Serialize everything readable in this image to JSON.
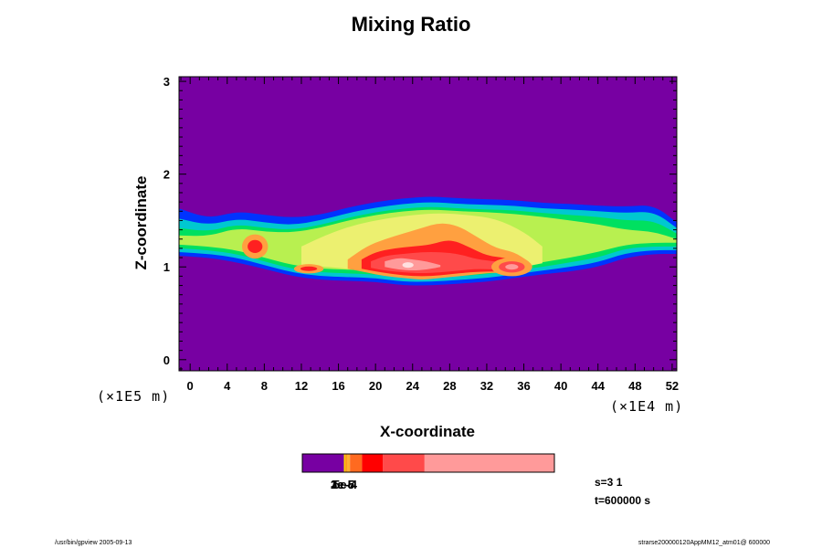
{
  "title": "Mixing Ratio",
  "chart_data": {
    "type": "heatmap",
    "title": "Mixing Ratio",
    "xlabel": "X-coordinate",
    "ylabel": "Z-coordinate",
    "x_scale_label": "(×1E4 m)",
    "y_scale_label": "(×1E5 m)",
    "xlim": [
      -1.2,
      52.5
    ],
    "ylim": [
      -0.12,
      3.05
    ],
    "x_ticks": [
      0,
      4,
      8,
      12,
      16,
      20,
      24,
      28,
      32,
      36,
      40,
      44,
      48,
      52
    ],
    "y_ticks": [
      0,
      1,
      2,
      3
    ],
    "background_color": "#7700a2",
    "cloud_layers": [
      {
        "color": "#0033ff",
        "x": [
          -1.2,
          2,
          5,
          8,
          11,
          14,
          17,
          20,
          23,
          26,
          29,
          32,
          35,
          38,
          41,
          44,
          47,
          50,
          52.5
        ],
        "z_top": [
          1.63,
          1.52,
          1.6,
          1.56,
          1.53,
          1.56,
          1.64,
          1.7,
          1.74,
          1.76,
          1.74,
          1.73,
          1.72,
          1.69,
          1.68,
          1.66,
          1.65,
          1.67,
          1.48
        ],
        "z_bot": [
          1.12,
          1.1,
          1.05,
          0.98,
          0.9,
          0.86,
          0.85,
          0.84,
          0.8,
          0.8,
          0.82,
          0.84,
          0.88,
          0.92,
          0.95,
          1.0,
          1.1,
          1.14,
          1.14
        ]
      },
      {
        "color": "#00c8d0",
        "x": [
          -1.2,
          2,
          5,
          8,
          11,
          14,
          17,
          20,
          23,
          26,
          29,
          32,
          35,
          38,
          41,
          44,
          47,
          50,
          52.5
        ],
        "z_top": [
          1.52,
          1.45,
          1.52,
          1.48,
          1.45,
          1.5,
          1.58,
          1.64,
          1.68,
          1.7,
          1.68,
          1.67,
          1.66,
          1.63,
          1.62,
          1.6,
          1.58,
          1.6,
          1.42
        ],
        "z_bot": [
          1.16,
          1.14,
          1.1,
          1.02,
          0.94,
          0.9,
          0.89,
          0.88,
          0.84,
          0.84,
          0.86,
          0.88,
          0.92,
          0.96,
          1.0,
          1.05,
          1.15,
          1.18,
          1.18
        ]
      },
      {
        "color": "#00e060",
        "x": [
          -1.2,
          2,
          5,
          8,
          11,
          14,
          17,
          20,
          23,
          26,
          29,
          32,
          35,
          38,
          41,
          44,
          47,
          50,
          52.5
        ],
        "z_top": [
          1.42,
          1.38,
          1.46,
          1.42,
          1.4,
          1.45,
          1.53,
          1.59,
          1.63,
          1.65,
          1.63,
          1.62,
          1.61,
          1.58,
          1.56,
          1.54,
          1.5,
          1.5,
          1.36
        ],
        "z_bot": [
          1.2,
          1.18,
          1.14,
          1.06,
          0.98,
          0.94,
          0.93,
          0.92,
          0.88,
          0.88,
          0.9,
          0.92,
          0.96,
          1.0,
          1.05,
          1.1,
          1.2,
          1.22,
          1.22
        ]
      },
      {
        "color": "#b8f050",
        "x": [
          -1.2,
          2,
          5,
          8,
          11,
          14,
          17,
          20,
          23,
          26,
          29,
          32,
          35,
          38,
          41,
          44,
          47,
          50,
          52.5
        ],
        "z_top": [
          1.34,
          1.33,
          1.42,
          1.38,
          1.37,
          1.42,
          1.5,
          1.56,
          1.6,
          1.62,
          1.6,
          1.59,
          1.57,
          1.54,
          1.5,
          1.46,
          1.4,
          1.38,
          1.3
        ],
        "z_bot": [
          1.24,
          1.22,
          1.18,
          1.1,
          1.02,
          0.98,
          0.97,
          0.96,
          0.92,
          0.92,
          0.94,
          0.96,
          1.0,
          1.05,
          1.1,
          1.16,
          1.24,
          1.26,
          1.26
        ]
      },
      {
        "color": "#ecf070",
        "x": [
          12,
          15,
          18,
          21,
          24,
          27,
          30,
          33,
          36,
          38
        ],
        "z_top": [
          1.22,
          1.36,
          1.46,
          1.52,
          1.56,
          1.58,
          1.56,
          1.52,
          1.38,
          1.22
        ],
        "z_bot": [
          1.02,
          1.0,
          0.97,
          0.94,
          0.92,
          0.92,
          0.94,
          0.96,
          1.0,
          1.04
        ]
      },
      {
        "color": "#ffa040",
        "x": [
          17,
          19,
          21,
          23,
          25,
          27,
          29,
          31,
          33,
          35,
          36.5
        ],
        "z_top": [
          1.08,
          1.22,
          1.3,
          1.36,
          1.42,
          1.48,
          1.44,
          1.32,
          1.2,
          1.16,
          1.06
        ],
        "z_bot": [
          0.98,
          0.94,
          0.9,
          0.88,
          0.86,
          0.88,
          0.9,
          0.92,
          0.94,
          0.92,
          0.98
        ]
      },
      {
        "color": "#ff2020",
        "x": [
          18.5,
          20,
          22,
          24,
          26,
          28,
          30,
          32,
          34,
          35.5
        ],
        "z_top": [
          1.08,
          1.16,
          1.2,
          1.22,
          1.24,
          1.3,
          1.22,
          1.12,
          1.1,
          1.04
        ],
        "z_bot": [
          0.98,
          0.95,
          0.92,
          0.9,
          0.9,
          0.92,
          0.94,
          0.95,
          0.95,
          0.98
        ]
      },
      {
        "color": "#ff4a4a",
        "x": [
          19.5,
          21,
          23,
          25,
          27,
          29,
          31,
          33,
          35
        ],
        "z_top": [
          1.06,
          1.12,
          1.14,
          1.16,
          1.16,
          1.14,
          1.08,
          1.06,
          1.02
        ],
        "z_bot": [
          0.99,
          0.96,
          0.94,
          0.93,
          0.94,
          0.96,
          0.98,
          0.97,
          0.99
        ]
      },
      {
        "color": "#ff9a9a",
        "x": [
          21,
          22.5,
          24,
          25.5,
          27
        ],
        "z_top": [
          1.06,
          1.1,
          1.08,
          1.06,
          1.02
        ],
        "z_bot": [
          1.0,
          0.97,
          0.96,
          0.97,
          1.0
        ]
      }
    ],
    "cloud_blobs": [
      {
        "color": "#ffa040",
        "x": 7.0,
        "z": 1.22,
        "rx": 1.4,
        "rz": 0.13
      },
      {
        "color": "#ff2020",
        "x": 7.0,
        "z": 1.22,
        "rx": 0.8,
        "rz": 0.07
      },
      {
        "color": "#ffa040",
        "x": 12.8,
        "z": 0.98,
        "rx": 1.6,
        "rz": 0.05
      },
      {
        "color": "#ff2020",
        "x": 12.8,
        "z": 0.98,
        "rx": 0.9,
        "rz": 0.025
      },
      {
        "color": "#ffa040",
        "x": 34.7,
        "z": 1.0,
        "rx": 2.2,
        "rz": 0.1
      },
      {
        "color": "#ff4a4a",
        "x": 34.7,
        "z": 1.0,
        "rx": 1.4,
        "rz": 0.06
      },
      {
        "color": "#ff9a9a",
        "x": 34.7,
        "z": 1.0,
        "rx": 0.7,
        "rz": 0.03
      },
      {
        "color": "#ffe0e0",
        "x": 23.5,
        "z": 1.02,
        "rx": 0.6,
        "rz": 0.03
      }
    ]
  },
  "colorbar": {
    "segments": [
      {
        "color": "#7700a2",
        "width": 0.165
      },
      {
        "color": "#ffd000",
        "width": 0.006
      },
      {
        "color": "#ff8c00",
        "width": 0.006
      },
      {
        "color": "#ffb030",
        "width": 0.012
      },
      {
        "color": "#ff6a20",
        "width": 0.048
      },
      {
        "color": "#ff0000",
        "width": 0.083
      },
      {
        "color": "#ff4a4a",
        "width": 0.165
      },
      {
        "color": "#ff9a9a",
        "width": 0.515
      }
    ],
    "labels": [
      "1e-5",
      "2e-5",
      "3e-5",
      "5e-4"
    ]
  },
  "info": {
    "line1": "s=3 1",
    "line2": "t=600000 s"
  },
  "footer": {
    "left": "/usr/bin/gpview 2005-09-13",
    "right": "strarse200000120AppMM12_atm01@ 600000"
  }
}
